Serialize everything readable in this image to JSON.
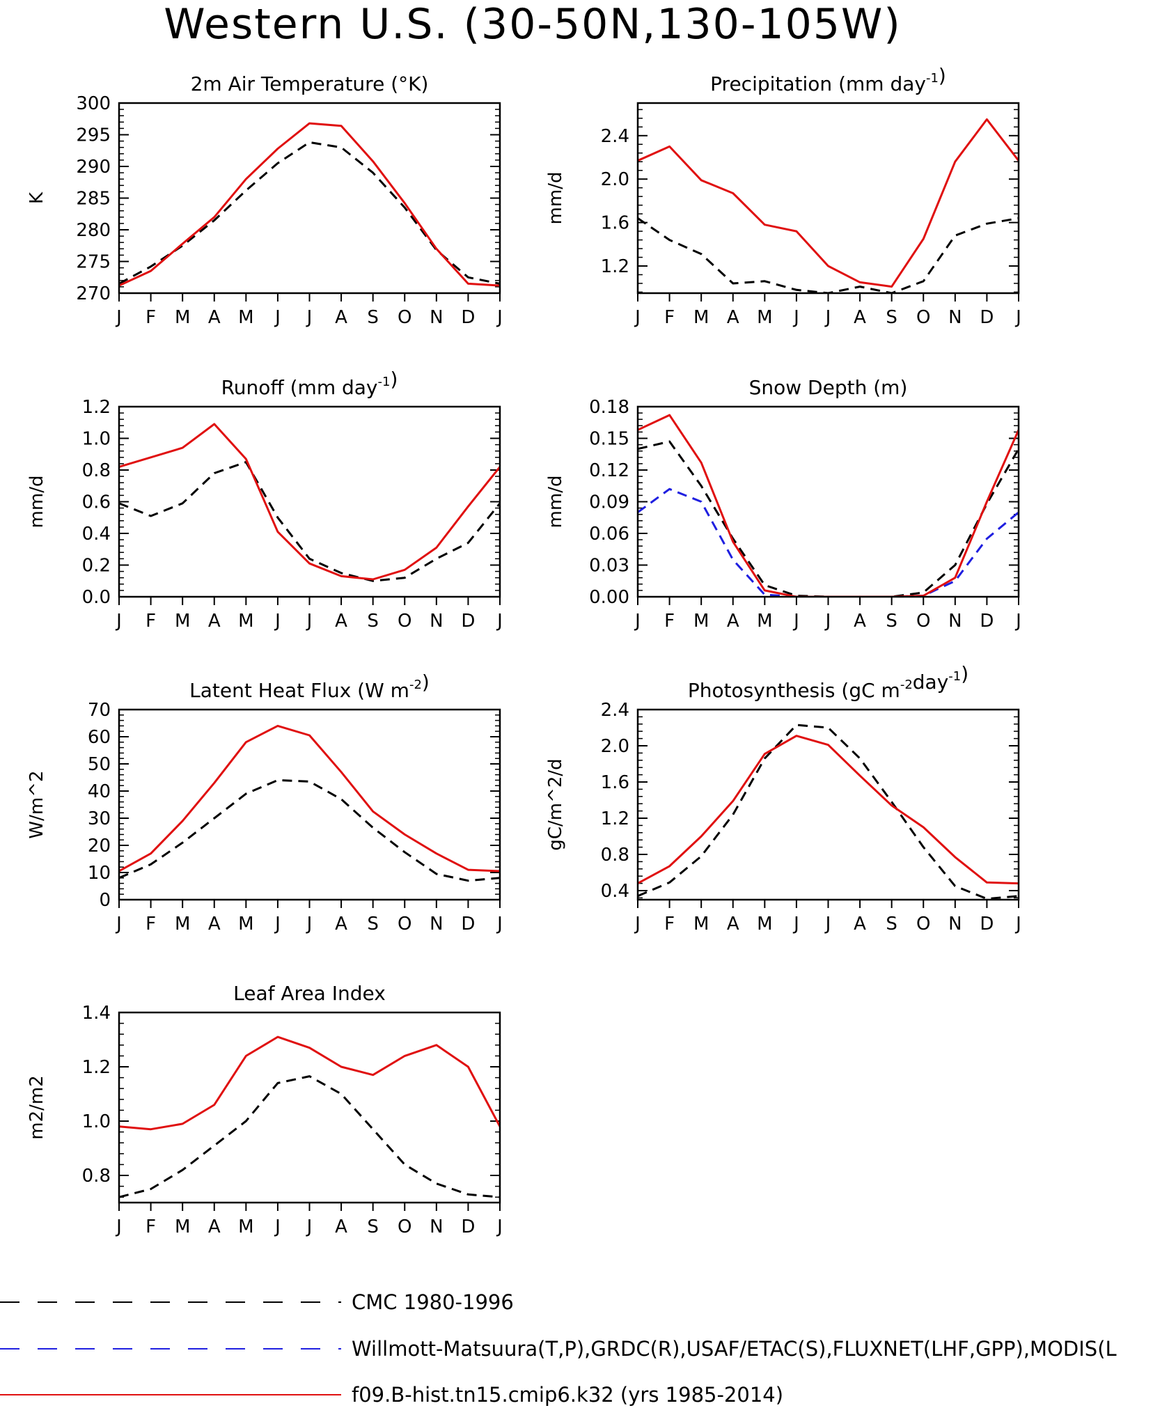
{
  "page_title": "Western U.S. (30-50N,130-105W)",
  "months": [
    "J",
    "F",
    "M",
    "A",
    "M",
    "J",
    "J",
    "A",
    "S",
    "O",
    "N",
    "D",
    "J"
  ],
  "legend": [
    {
      "label": "CMC 1980-1996",
      "color": "#000000",
      "style": "dashed"
    },
    {
      "label": "Willmott-Matsuura(T,P),GRDC(R),USAF/ETAC(S),FLUXNET(LHF,GPP),MODIS(L",
      "color": "#1f1fe0",
      "style": "dashed"
    },
    {
      "label": "f09.B-hist.tn15.cmip6.k32 (yrs 1985-2014)",
      "color": "#e01010",
      "style": "solid"
    }
  ],
  "chart_data": [
    {
      "type": "line",
      "title": "2m Air Temperature (°K)",
      "ylabel": "K",
      "ylim": [
        270,
        300
      ],
      "yticks": [
        270,
        275,
        280,
        285,
        290,
        295,
        300
      ],
      "ytick_labels": [
        "270",
        "275",
        "280",
        "285",
        "290",
        "295",
        "300"
      ],
      "x": [
        "J",
        "F",
        "M",
        "A",
        "M",
        "J",
        "J",
        "A",
        "S",
        "O",
        "N",
        "D",
        "J"
      ],
      "series": [
        {
          "legend": "CMC 1980-1996",
          "values": [
            271.5,
            274.2,
            277.5,
            281.5,
            286.2,
            290.5,
            293.8,
            293.0,
            289.0,
            283.5,
            276.8,
            272.5,
            271.5
          ]
        },
        {
          "legend": "f09.B-hist.tn15.cmip6.k32 (yrs 1985-2014)",
          "values": [
            271.2,
            273.5,
            277.8,
            282.0,
            288.0,
            292.8,
            296.8,
            296.4,
            290.8,
            284.2,
            277.0,
            271.5,
            271.2
          ]
        }
      ]
    },
    {
      "type": "line",
      "title": "Precipitation (mm day-1)",
      "ylabel": "mm/d",
      "ylim": [
        0.95,
        2.7
      ],
      "yticks": [
        1.2,
        1.6,
        2.0,
        2.4
      ],
      "ytick_labels": [
        "1.2",
        "1.6",
        "2.0",
        "2.4"
      ],
      "x": [
        "J",
        "F",
        "M",
        "A",
        "M",
        "J",
        "J",
        "A",
        "S",
        "O",
        "N",
        "D",
        "J"
      ],
      "series": [
        {
          "legend": "CMC 1980-1996",
          "values": [
            1.64,
            1.44,
            1.31,
            1.04,
            1.06,
            0.98,
            0.95,
            1.01,
            0.95,
            1.06,
            1.48,
            1.59,
            1.64
          ]
        },
        {
          "legend": "f09.B-hist.tn15.cmip6.k32 (yrs 1985-2014)",
          "values": [
            2.17,
            2.3,
            1.99,
            1.87,
            1.58,
            1.52,
            1.2,
            1.05,
            1.01,
            1.45,
            2.16,
            2.55,
            2.17
          ]
        }
      ]
    },
    {
      "type": "line",
      "title": "Runoff (mm day-1)",
      "ylabel": "mm/d",
      "ylim": [
        0,
        1.2
      ],
      "yticks": [
        0,
        0.2,
        0.4,
        0.6,
        0.8,
        1.0,
        1.2
      ],
      "ytick_labels": [
        "0.0",
        "0.2",
        "0.4",
        "0.6",
        "0.8",
        "1.0",
        "1.2"
      ],
      "x": [
        "J",
        "F",
        "M",
        "A",
        "M",
        "J",
        "J",
        "A",
        "S",
        "O",
        "N",
        "D",
        "J"
      ],
      "series": [
        {
          "legend": "CMC 1980-1996",
          "values": [
            0.59,
            0.51,
            0.59,
            0.78,
            0.85,
            0.5,
            0.24,
            0.15,
            0.1,
            0.12,
            0.24,
            0.34,
            0.59
          ]
        },
        {
          "legend": "f09.B-hist.tn15.cmip6.k32 (yrs 1985-2014)",
          "values": [
            0.82,
            0.88,
            0.94,
            1.09,
            0.87,
            0.41,
            0.21,
            0.13,
            0.11,
            0.17,
            0.31,
            0.57,
            0.82
          ]
        }
      ]
    },
    {
      "type": "line",
      "title": "Snow Depth (m)",
      "ylabel": "mm/d",
      "ylim": [
        0,
        0.18
      ],
      "yticks": [
        0,
        0.03,
        0.06,
        0.09,
        0.12,
        0.15,
        0.18
      ],
      "ytick_labels": [
        "0.00",
        "0.03",
        "0.06",
        "0.09",
        "0.12",
        "0.15",
        "0.18"
      ],
      "x": [
        "J",
        "F",
        "M",
        "A",
        "M",
        "J",
        "J",
        "A",
        "S",
        "O",
        "N",
        "D",
        "J"
      ],
      "series": [
        {
          "legend": "CMC 1980-1996",
          "values": [
            0.14,
            0.147,
            0.105,
            0.055,
            0.011,
            0.001,
            0,
            0,
            0,
            0.004,
            0.03,
            0.088,
            0.14
          ]
        },
        {
          "legend": "Willmott-Matsuura(T,P),GRDC(R),USAF/ETAC(S),FLUXNET(LHF,GPP),MODIS(L",
          "values": [
            0.08,
            0.102,
            0.09,
            0.035,
            0.002,
            0,
            0,
            0,
            0,
            0.001,
            0.015,
            0.055,
            0.08
          ]
        },
        {
          "legend": "f09.B-hist.tn15.cmip6.k32 (yrs 1985-2014)",
          "values": [
            0.158,
            0.172,
            0.127,
            0.052,
            0.006,
            0,
            0,
            0,
            0,
            0.001,
            0.018,
            0.09,
            0.158
          ]
        }
      ]
    },
    {
      "type": "line",
      "title": "Latent Heat Flux (W m-2)",
      "ylabel": "W/m^2",
      "ylim": [
        0,
        70
      ],
      "yticks": [
        0,
        10,
        20,
        30,
        40,
        50,
        60,
        70
      ],
      "ytick_labels": [
        "0",
        "10",
        "20",
        "30",
        "40",
        "50",
        "60",
        "70"
      ],
      "x": [
        "J",
        "F",
        "M",
        "A",
        "M",
        "J",
        "J",
        "A",
        "S",
        "O",
        "N",
        "D",
        "J"
      ],
      "series": [
        {
          "legend": "CMC 1980-1996",
          "values": [
            8,
            13,
            21,
            30,
            39,
            44,
            43.5,
            37,
            26.5,
            17.5,
            9.5,
            7,
            8
          ]
        },
        {
          "legend": "f09.B-hist.tn15.cmip6.k32 (yrs 1985-2014)",
          "values": [
            10.5,
            17,
            29,
            43,
            58,
            64,
            60.5,
            47,
            32.5,
            24,
            17,
            11,
            10.5
          ]
        }
      ]
    },
    {
      "type": "line",
      "title": "Photosynthesis (gC m-2day-1)",
      "ylabel": "gC/m^2/d",
      "ylim": [
        0.3,
        2.4
      ],
      "yticks": [
        0.4,
        0.8,
        1.2,
        1.6,
        2.0,
        2.4
      ],
      "ytick_labels": [
        "0.4",
        "0.8",
        "1.2",
        "1.6",
        "2.0",
        "2.4"
      ],
      "x": [
        "J",
        "F",
        "M",
        "A",
        "M",
        "J",
        "J",
        "A",
        "S",
        "O",
        "N",
        "D",
        "J"
      ],
      "series": [
        {
          "legend": "CMC 1980-1996",
          "values": [
            0.34,
            0.49,
            0.78,
            1.24,
            1.86,
            2.23,
            2.2,
            1.86,
            1.38,
            0.88,
            0.45,
            0.31,
            0.34
          ]
        },
        {
          "legend": "f09.B-hist.tn15.cmip6.k32 (yrs 1985-2014)",
          "values": [
            0.48,
            0.67,
            1.0,
            1.39,
            1.91,
            2.11,
            2.01,
            1.67,
            1.34,
            1.1,
            0.77,
            0.49,
            0.48
          ]
        }
      ]
    },
    {
      "type": "line",
      "title": "Leaf Area Index",
      "ylabel": "m2/m2",
      "ylim": [
        0.7,
        1.4
      ],
      "yticks": [
        0.8,
        1.0,
        1.2,
        1.4
      ],
      "ytick_labels": [
        "0.8",
        "1.0",
        "1.2",
        "1.4"
      ],
      "x": [
        "J",
        "F",
        "M",
        "A",
        "M",
        "J",
        "J",
        "A",
        "S",
        "O",
        "N",
        "D",
        "J"
      ],
      "series": [
        {
          "legend": "CMC 1980-1996",
          "values": [
            0.72,
            0.75,
            0.82,
            0.91,
            1.0,
            1.14,
            1.165,
            1.1,
            0.97,
            0.84,
            0.77,
            0.73,
            0.72
          ]
        },
        {
          "legend": "f09.B-hist.tn15.cmip6.k32 (yrs 1985-2014)",
          "values": [
            0.98,
            0.97,
            0.99,
            1.06,
            1.24,
            1.31,
            1.27,
            1.2,
            1.17,
            1.24,
            1.28,
            1.2,
            0.98
          ]
        }
      ]
    }
  ]
}
